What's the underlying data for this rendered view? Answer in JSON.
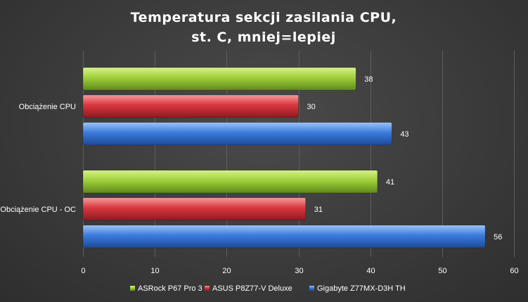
{
  "chart_data": {
    "type": "bar",
    "orientation": "horizontal",
    "title_lines": [
      "Temperatura sekcji zasilania CPU,",
      "st. C, mniej=lepiej"
    ],
    "categories": [
      "Obciążenie CPU",
      "Obciążenie CPU - OC"
    ],
    "series": [
      {
        "name": "ASRock P67 Pro 3",
        "color": "#9fcf3b",
        "values": [
          38,
          41
        ]
      },
      {
        "name": "ASUS P8Z77-V Deluxe",
        "color": "#d9363e",
        "values": [
          30,
          31
        ]
      },
      {
        "name": "Gigabyte Z77MX-D3H TH",
        "color": "#3b7bdc",
        "values": [
          43,
          56
        ]
      }
    ],
    "xlim": [
      0,
      60
    ],
    "xticks": [
      0,
      10,
      20,
      30,
      40,
      50,
      60
    ],
    "grid": true,
    "legend_position": "bottom"
  }
}
